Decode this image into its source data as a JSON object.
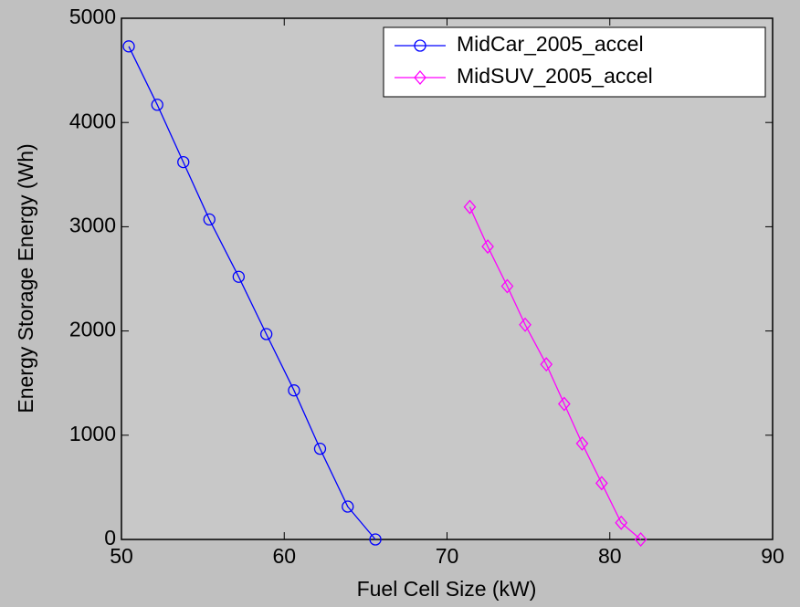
{
  "chart_data": {
    "type": "line",
    "x_label": "Fuel Cell Size (kW)",
    "y_label": "Energy Storage Energy (Wh)",
    "xlim": [
      50,
      90
    ],
    "xticks": [
      50,
      60,
      70,
      80,
      90
    ],
    "ylim": [
      0,
      5000
    ],
    "yticks": [
      0,
      1000,
      2000,
      3000,
      4000,
      5000
    ],
    "legend": "upper right",
    "series": [
      {
        "name": "MidCar_2005_accel",
        "color": "#0000ff",
        "marker": "circle",
        "x": [
          50.45,
          52.2,
          53.8,
          55.4,
          57.2,
          58.9,
          60.6,
          62.2,
          63.9,
          65.6
        ],
        "values": [
          4730,
          4170,
          3620,
          3070,
          2520,
          1970,
          1430,
          870,
          315,
          0
        ]
      },
      {
        "name": "MidSUV_2005_accel",
        "color": "#ff00ff",
        "marker": "diamond",
        "x": [
          71.4,
          72.5,
          73.7,
          74.8,
          76.1,
          77.2,
          78.3,
          79.5,
          80.7,
          81.9
        ],
        "values": [
          3190,
          2810,
          2430,
          2060,
          1680,
          1300,
          920,
          540,
          160,
          0
        ]
      }
    ]
  }
}
